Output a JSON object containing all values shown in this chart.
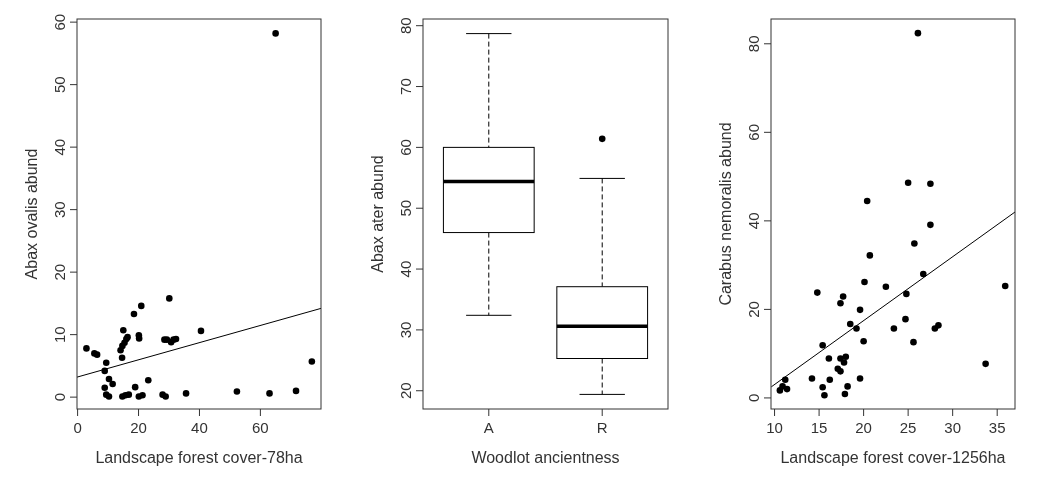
{
  "chart_data": [
    {
      "type": "scatter",
      "xlabel": "Landscape forest cover-78ha",
      "ylabel": "Abax ovalis abund",
      "xlim": [
        -0.2,
        79.9
      ],
      "ylim": [
        -1.9,
        60.5
      ],
      "xticks": [
        0,
        20,
        40,
        60
      ],
      "yticks": [
        0,
        10,
        20,
        30,
        40,
        50,
        60
      ],
      "series": [
        {
          "type": "scatter",
          "marker": "circle",
          "color": "#000000",
          "x": [
            2.9,
            5.5,
            6.4,
            9.4,
            8.9,
            10.3,
            11.5,
            8.9,
            9.4,
            10.3,
            14.7,
            15.7,
            16.8,
            18.9,
            20.1,
            21.3,
            23.2,
            14.6,
            14.1,
            14.7,
            15.4,
            16.0,
            16.4,
            15.0,
            20.1,
            20.2,
            18.5,
            20.9,
            30.1,
            28.5,
            29.3,
            30.7,
            31.5,
            32.3,
            40.5,
            27.9,
            28.9,
            35.6,
            52.3,
            63.0,
            71.7,
            76.9,
            65.0
          ],
          "values": [
            7.8,
            7.0,
            6.8,
            5.5,
            4.2,
            2.9,
            2.1,
            1.5,
            0.4,
            0.1,
            0.1,
            0.3,
            0.4,
            1.6,
            0.1,
            0.3,
            2.7,
            6.3,
            7.5,
            8.2,
            8.7,
            9.3,
            9.6,
            10.7,
            9.9,
            9.4,
            13.3,
            14.6,
            15.8,
            9.2,
            9.2,
            8.8,
            9.2,
            9.3,
            10.6,
            0.4,
            0.1,
            0.6,
            0.9,
            0.6,
            1.0,
            5.7,
            58.2
          ]
        },
        {
          "type": "line",
          "color": "#000000",
          "x": [
            -0.2,
            79.9
          ],
          "values": [
            3.2,
            14.2
          ]
        }
      ]
    },
    {
      "type": "box",
      "xlabel": "Woodlot ancientness",
      "ylabel": "Abax ater abund",
      "categories": [
        "A",
        "R"
      ],
      "ylim": [
        17,
        81.1
      ],
      "yticks": [
        20,
        30,
        40,
        50,
        60,
        70,
        80
      ],
      "line_style": "dashed",
      "boxes": [
        {
          "low": 32.4,
          "q1": 46,
          "median": 54.4,
          "q3": 60,
          "high": 78.7
        },
        {
          "low": 19.4,
          "q1": 25.3,
          "median": 30.6,
          "q3": 37.1,
          "high": 54.9,
          "outliers": [
            61.4
          ]
        }
      ]
    },
    {
      "type": "scatter",
      "xlabel": "Landscape forest cover-1256ha",
      "ylabel": "Carabus nemoralis abund",
      "xlim": [
        9.6,
        37
      ],
      "ylim": [
        -2.5,
        85.6
      ],
      "xticks": [
        10,
        15,
        20,
        25,
        30,
        35
      ],
      "yticks": [
        0,
        20,
        40,
        60,
        80
      ],
      "series": [
        {
          "type": "scatter",
          "marker": "circle",
          "color": "#000000",
          "x": [
            10.6,
            10.9,
            11.2,
            11.4,
            14.2,
            14.8,
            15.4,
            15.4,
            15.6,
            16.1,
            16.2,
            17.1,
            17.4,
            17.4,
            18.0,
            17.8,
            17.9,
            18.2,
            17.4,
            17.7,
            18.5,
            19.2,
            19.6,
            19.6,
            20.0,
            20.1,
            22.5,
            23.4,
            24.8,
            24.7,
            25.6,
            28.0,
            28.4,
            33.7,
            35.9,
            26.1,
            25.0,
            27.5,
            20.4,
            27.5,
            25.7,
            20.7,
            26.7
          ],
          "values": [
            1.7,
            2.6,
            4.1,
            2.0,
            4.4,
            23.8,
            11.9,
            2.4,
            0.6,
            8.9,
            4.1,
            6.6,
            6.0,
            8.9,
            9.3,
            8.0,
            0.9,
            2.6,
            21.4,
            22.9,
            16.7,
            15.7,
            19.9,
            4.4,
            12.8,
            26.2,
            25.1,
            15.7,
            23.5,
            17.8,
            12.6,
            15.7,
            16.4,
            7.7,
            25.3,
            82.4,
            48.6,
            48.4,
            44.5,
            39.1,
            34.9,
            32.2,
            28.0
          ]
        },
        {
          "type": "line",
          "color": "#000000",
          "x": [
            9.63,
            37
          ],
          "values": [
            2.5,
            42.0
          ]
        }
      ]
    }
  ]
}
